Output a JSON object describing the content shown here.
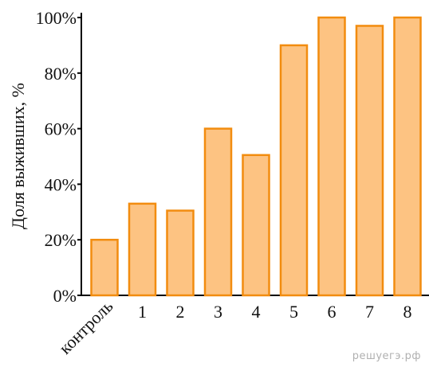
{
  "chart_data": {
    "type": "bar",
    "categories": [
      "контроль",
      "1",
      "2",
      "3",
      "4",
      "5",
      "6",
      "7",
      "8"
    ],
    "values": [
      20,
      33,
      30.5,
      60,
      50.5,
      90,
      100,
      97,
      100
    ],
    "ylabel": "Доля выживших, %",
    "xlabel": "",
    "title": "",
    "ylim": [
      0,
      100
    ],
    "yticks": [
      0,
      20,
      40,
      60,
      80,
      100
    ],
    "ytick_labels": [
      "0%",
      "20%",
      "40%",
      "60%",
      "80%",
      "100%"
    ],
    "grid": false,
    "legend": "none"
  },
  "colors": {
    "bar_fill": "#fdc382",
    "bar_stroke": "#f28c0f",
    "axis": "#000000"
  },
  "watermark": "решуегэ.рф"
}
